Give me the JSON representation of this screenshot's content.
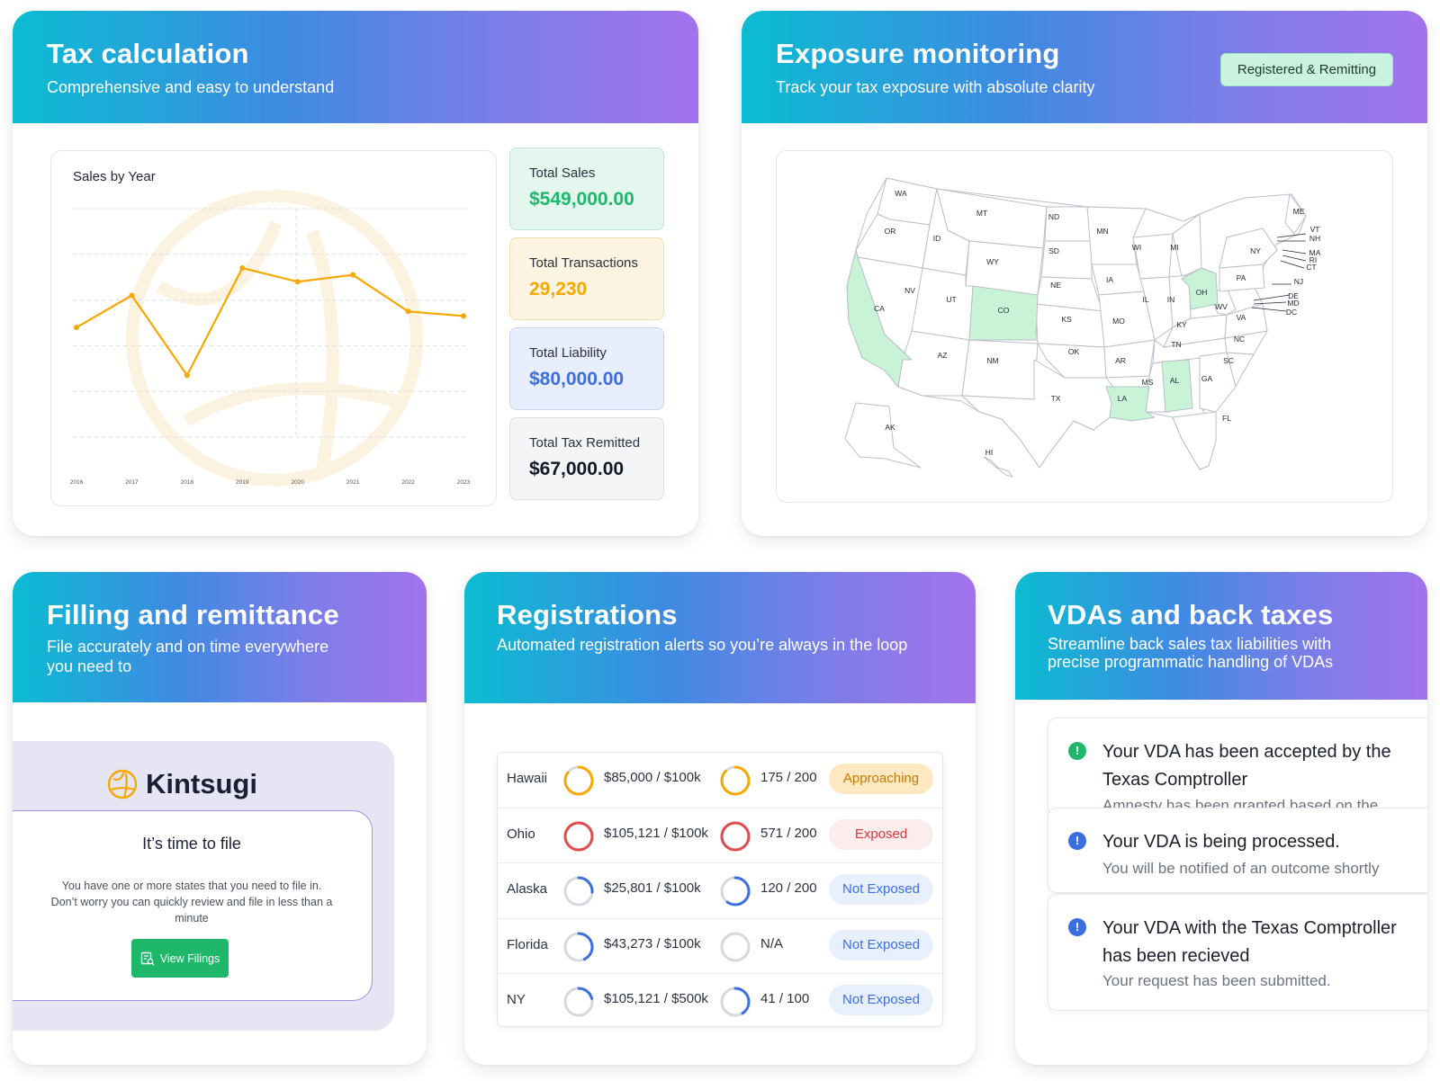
{
  "colors": {
    "accent_gradient": [
      "#0bbcd2",
      "#3f8ae2",
      "#a373ec"
    ],
    "green": "#1fb86a",
    "orange": "#f5a800",
    "blue": "#3b6fe0",
    "red": "#e24b4b"
  },
  "tax_card": {
    "title": "Tax calculation",
    "subtitle": "Comprehensive and easy to understand",
    "chart_title": "Sales by Year",
    "metrics": [
      {
        "label": "Total Sales",
        "value": "$549,000.00"
      },
      {
        "label": "Total Transactions",
        "value": "29,230"
      },
      {
        "label": "Total Liability",
        "value": "$80,000.00"
      },
      {
        "label": "Total Tax Remitted",
        "value": "$67,000.00"
      }
    ]
  },
  "chart_data": {
    "type": "line",
    "title": "Sales by Year",
    "categories": [
      "2016",
      "2017",
      "2018",
      "2019",
      "2020",
      "2021",
      "2022",
      "2023"
    ],
    "values": [
      48,
      62,
      27,
      74,
      68,
      71,
      55,
      53
    ],
    "ylim": [
      0,
      100
    ],
    "grid": true,
    "color": "#f5a800"
  },
  "exposure_card": {
    "title": "Exposure monitoring",
    "subtitle": "Track your tax exposure with absolute clarity",
    "badge": "Registered & Remitting",
    "highlighted_states": [
      "CA",
      "CO",
      "OH",
      "LA",
      "AL"
    ],
    "state_labels": [
      "WA",
      "OR",
      "CA",
      "ID",
      "NV",
      "MT",
      "WY",
      "UT",
      "AZ",
      "CO",
      "NM",
      "ND",
      "SD",
      "NE",
      "KS",
      "OK",
      "TX",
      "MN",
      "IA",
      "MO",
      "AR",
      "LA",
      "WI",
      "IL",
      "MS",
      "MI",
      "IN",
      "KY",
      "TN",
      "AL",
      "OH",
      "WV",
      "GA",
      "FL",
      "PA",
      "VA",
      "NC",
      "SC",
      "NY",
      "ME",
      "VT",
      "NH",
      "MA",
      "RI",
      "CT",
      "NJ",
      "DE",
      "MD",
      "DC",
      "AK",
      "HI"
    ]
  },
  "filing_card": {
    "title": "Filling and remittance",
    "subtitle_line1": "File accurately and on time everywhere",
    "subtitle_line2": "you need to",
    "brand": "Kintsugi",
    "notice_title": "It’s time to file",
    "notice_line1": "You have one or more states that you need to file in.",
    "notice_line2": "Don’t worry you can quickly review and file in less than a",
    "notice_line3": "minute",
    "button": "View Filings"
  },
  "registrations_card": {
    "title": "Registrations",
    "subtitle": "Automated registration alerts so you’re always in the loop",
    "rows": [
      {
        "state": "Hawaii",
        "sales": "$85,000 / $100k",
        "sales_pct": 0.85,
        "txn": "175 / 200",
        "txn_pct": 0.875,
        "status": "Approaching",
        "kind": "approaching"
      },
      {
        "state": "Ohio",
        "sales": "$105,121 / $100k",
        "sales_pct": 1.0,
        "txn": "571 / 200",
        "txn_pct": 1.0,
        "status": "Exposed",
        "kind": "exposed"
      },
      {
        "state": "Alaska",
        "sales": "$25,801 / $100k",
        "sales_pct": 0.26,
        "txn": "120 / 200",
        "txn_pct": 0.6,
        "status": "Not Exposed",
        "kind": "not"
      },
      {
        "state": "Florida",
        "sales": "$43,273 / $100k",
        "sales_pct": 0.43,
        "txn": "N/A",
        "txn_pct": 0,
        "status": "Not Exposed",
        "kind": "not"
      },
      {
        "state": "NY",
        "sales": "$105,121 / $500k",
        "sales_pct": 0.21,
        "txn": "41 / 100",
        "txn_pct": 0.41,
        "status": "Not Exposed",
        "kind": "not"
      }
    ]
  },
  "vda_card": {
    "title": "VDAs and back taxes",
    "subtitle_line1": "Streamline back sales tax liabilities with",
    "subtitle_line2": "precise programmatic handling of VDAs",
    "items": [
      {
        "title_line1": "Your VDA has been accepted by the",
        "title_line2": "Texas Comptroller",
        "body": "Amnesty has been granted based on the"
      },
      {
        "title_line1": "Your VDA is being processed.",
        "title_line2": "",
        "body": "You will be notified of an outcome shortly"
      },
      {
        "title_line1": "Your VDA with the Texas Comptroller",
        "title_line2": "has been recieved",
        "body": "Your request has been submitted."
      }
    ]
  }
}
